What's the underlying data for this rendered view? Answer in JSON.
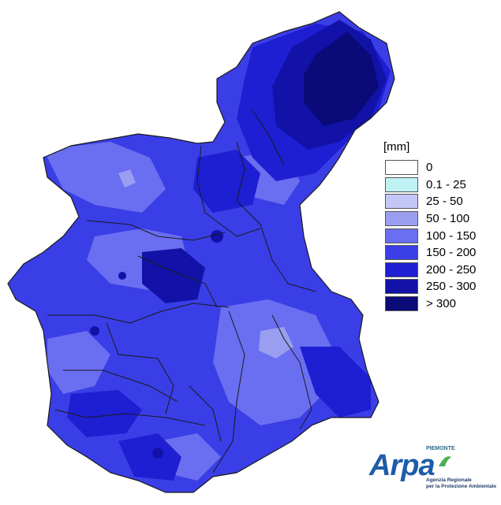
{
  "map": {
    "fill_base": "#3a3ee6",
    "border_color": "#1a1a1a"
  },
  "legend": {
    "title": "[mm]",
    "items": [
      {
        "label": "0",
        "color": "#ffffff"
      },
      {
        "label": "0.1 - 25",
        "color": "#bff2f5"
      },
      {
        "label": "25 - 50",
        "color": "#c4c6f6"
      },
      {
        "label": "50 - 100",
        "color": "#9a9ef0"
      },
      {
        "label": "100 - 150",
        "color": "#6a6ef0"
      },
      {
        "label": "150 - 200",
        "color": "#3a3ee6"
      },
      {
        "label": "200 - 250",
        "color": "#1e1ed2"
      },
      {
        "label": "250 - 300",
        "color": "#1212a8"
      },
      {
        "label": "> 300",
        "color": "#0a0a78"
      }
    ]
  },
  "logo": {
    "region": "PIEMONTE",
    "word": "Arpa",
    "line1": "Agenzia Regionale",
    "line2": "per la Protezione Ambientale",
    "color": "#1d5ca8"
  }
}
